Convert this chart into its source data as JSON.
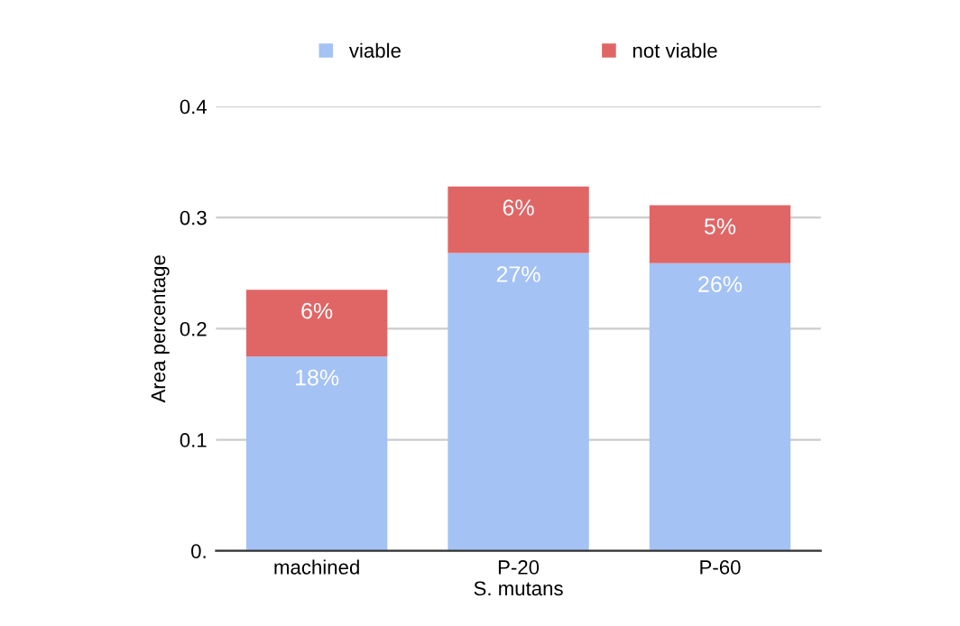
{
  "chart_data": {
    "type": "bar",
    "stacked": true,
    "xlabel": "S. mutans",
    "ylabel": "Area percentage",
    "categories": [
      "machined",
      "P-20",
      "P-60"
    ],
    "series": [
      {
        "name": "viable",
        "color": "#a4c2f4",
        "values": [
          0.175,
          0.268,
          0.259
        ],
        "value_labels": [
          "18%",
          "27%",
          "26%"
        ]
      },
      {
        "name": "not viable",
        "color": "#e06666",
        "values": [
          0.06,
          0.06,
          0.052
        ],
        "value_labels": [
          "6%",
          "6%",
          "5%"
        ]
      }
    ],
    "ylim": [
      0,
      0.4
    ],
    "yticks": [
      {
        "value": 0,
        "label": "0."
      },
      0.1,
      0.2,
      0.3,
      0.4
    ],
    "grid": "y",
    "legend": "top"
  }
}
